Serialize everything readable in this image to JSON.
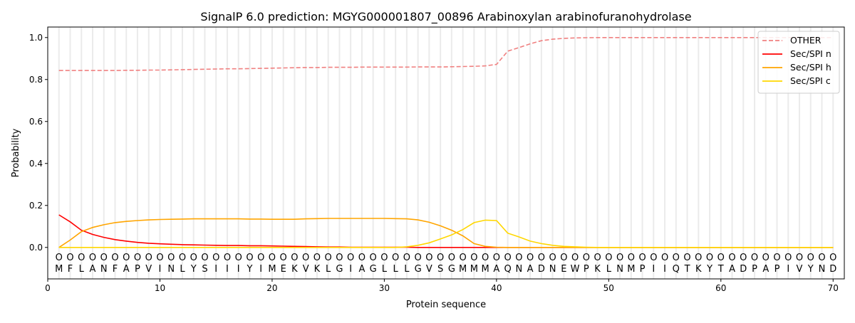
{
  "chart_data": {
    "type": "line",
    "title": "SignalP 6.0 prediction: MGYG000001807_00896 Arabinoxylan arabinofuranohydrolase",
    "xlabel": "Protein sequence",
    "ylabel": "Probability",
    "xlim": [
      0,
      71
    ],
    "ylim": [
      -0.15,
      1.05
    ],
    "xticks": [
      0,
      10,
      20,
      30,
      40,
      50,
      60,
      70
    ],
    "yticks": [
      0.0,
      0.2,
      0.4,
      0.6,
      0.8,
      1.0
    ],
    "grid": "vertical lines at each residue",
    "legend_position": "top-right",
    "sequence": [
      "M",
      "F",
      "L",
      "A",
      "N",
      "F",
      "A",
      "P",
      "V",
      "I",
      "N",
      "L",
      "Y",
      "S",
      "I",
      "I",
      "I",
      "Y",
      "I",
      "M",
      "E",
      "K",
      "V",
      "K",
      "L",
      "G",
      "I",
      "A",
      "G",
      "L",
      "L",
      "L",
      "G",
      "V",
      "S",
      "G",
      "M",
      "M",
      "M",
      "A",
      "Q",
      "N",
      "A",
      "D",
      "N",
      "E",
      "W",
      "P",
      "K",
      "L",
      "N",
      "M",
      "P",
      "I",
      "I",
      "Q",
      "T",
      "K",
      "Y",
      "T",
      "A",
      "D",
      "P",
      "A",
      "P",
      "I",
      "V",
      "Y",
      "N",
      "D"
    ],
    "residue_marker": "O",
    "series": [
      {
        "name": "OTHER",
        "color": "#f08080",
        "dashed": true,
        "values": [
          0.843,
          0.843,
          0.843,
          0.843,
          0.843,
          0.843,
          0.844,
          0.844,
          0.845,
          0.845,
          0.846,
          0.847,
          0.848,
          0.849,
          0.85,
          0.851,
          0.851,
          0.852,
          0.853,
          0.854,
          0.855,
          0.856,
          0.857,
          0.857,
          0.858,
          0.858,
          0.858,
          0.859,
          0.859,
          0.859,
          0.859,
          0.859,
          0.86,
          0.86,
          0.86,
          0.861,
          0.862,
          0.863,
          0.865,
          0.872,
          0.935,
          0.952,
          0.97,
          0.985,
          0.992,
          0.996,
          0.998,
          0.999,
          1.0,
          1.0,
          1.0,
          1.0,
          1.0,
          1.0,
          1.0,
          1.0,
          1.0,
          1.0,
          1.0,
          1.0,
          1.0,
          1.0,
          1.0,
          1.0,
          1.0,
          1.0,
          1.0,
          1.0,
          1.0,
          1.0
        ]
      },
      {
        "name": "Sec/SPI n",
        "color": "#ff0000",
        "dashed": false,
        "values": [
          0.155,
          0.122,
          0.082,
          0.062,
          0.048,
          0.037,
          0.03,
          0.024,
          0.02,
          0.017,
          0.015,
          0.013,
          0.012,
          0.011,
          0.01,
          0.009,
          0.009,
          0.008,
          0.008,
          0.007,
          0.006,
          0.005,
          0.004,
          0.003,
          0.002,
          0.002,
          0.001,
          0.001,
          0.001,
          0.001,
          0.001,
          0.001,
          0,
          0,
          0,
          0,
          0,
          0,
          0,
          0,
          0,
          0,
          0,
          0,
          0,
          0,
          0,
          0,
          0,
          0,
          0,
          0,
          0,
          0,
          0,
          0,
          0,
          0,
          0,
          0,
          0,
          0,
          0,
          0,
          0,
          0,
          0,
          0,
          0,
          0
        ]
      },
      {
        "name": "Sec/SPI h",
        "color": "#ffa500",
        "dashed": false,
        "values": [
          0.0,
          0.035,
          0.075,
          0.095,
          0.108,
          0.118,
          0.124,
          0.128,
          0.131,
          0.133,
          0.134,
          0.135,
          0.136,
          0.136,
          0.136,
          0.136,
          0.136,
          0.135,
          0.135,
          0.134,
          0.134,
          0.134,
          0.136,
          0.137,
          0.138,
          0.138,
          0.138,
          0.138,
          0.138,
          0.138,
          0.137,
          0.136,
          0.131,
          0.12,
          0.103,
          0.082,
          0.055,
          0.018,
          0.005,
          0.001,
          0,
          0,
          0,
          0,
          0,
          0,
          0,
          0,
          0,
          0,
          0,
          0,
          0,
          0,
          0,
          0,
          0,
          0,
          0,
          0,
          0,
          0,
          0,
          0,
          0,
          0,
          0,
          0,
          0,
          0
        ]
      },
      {
        "name": "Sec/SPI c",
        "color": "#ffd700",
        "dashed": false,
        "values": [
          0,
          0,
          0,
          0,
          0,
          0,
          0,
          0,
          0,
          0,
          0,
          0,
          0,
          0,
          0,
          0,
          0,
          0,
          0,
          0,
          0,
          0,
          0,
          0,
          0,
          0,
          0,
          0,
          0,
          0,
          0,
          0.003,
          0.01,
          0.022,
          0.04,
          0.06,
          0.085,
          0.118,
          0.13,
          0.128,
          0.068,
          0.05,
          0.03,
          0.018,
          0.01,
          0.005,
          0.003,
          0.001,
          0,
          0,
          0,
          0,
          0,
          0,
          0,
          0,
          0,
          0,
          0,
          0,
          0,
          0,
          0,
          0,
          0,
          0,
          0,
          0,
          0,
          0
        ]
      }
    ]
  }
}
